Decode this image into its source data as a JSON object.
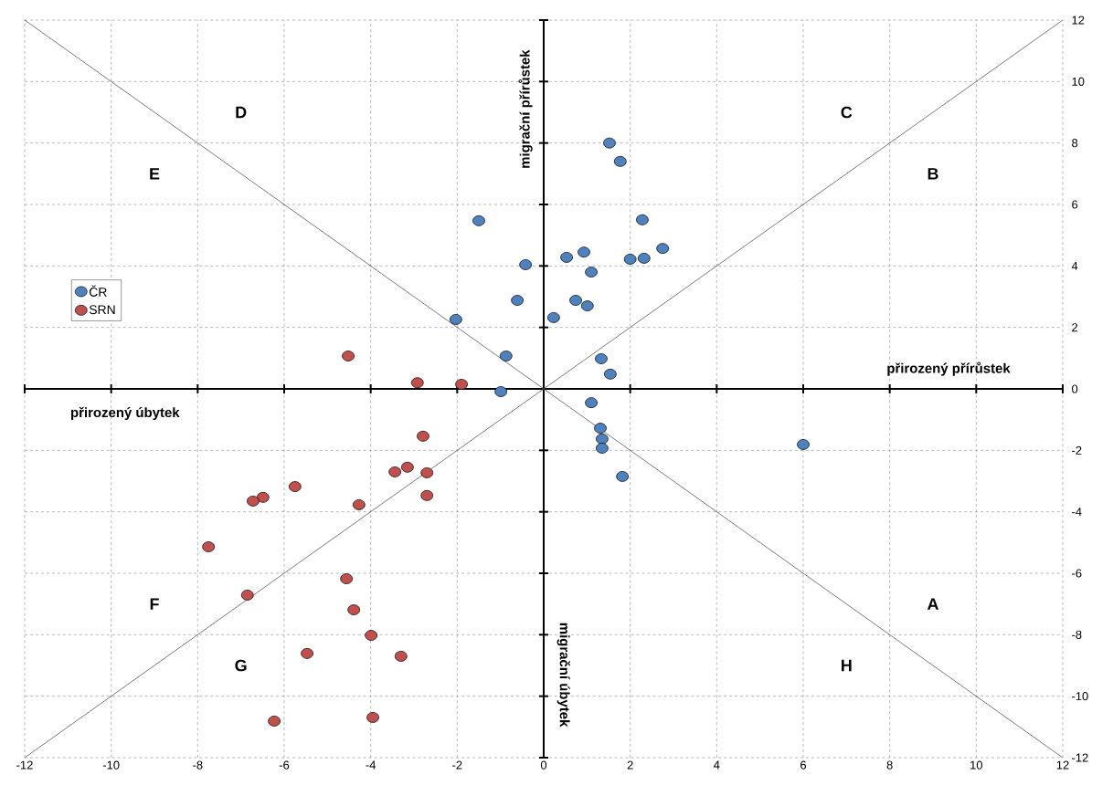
{
  "chart_data": {
    "type": "scatter",
    "marker": "circle",
    "grid": true,
    "legend": "left",
    "tick_labels": "xy",
    "xlim": [
      -12,
      12
    ],
    "ylim": [
      -12,
      12
    ],
    "xticks": [
      -12,
      -10,
      -8,
      -6,
      -4,
      -2,
      0,
      2,
      4,
      6,
      8,
      10,
      12
    ],
    "yticks": [
      -12,
      -10,
      -8,
      -6,
      -4,
      -2,
      0,
      2,
      4,
      6,
      8,
      10,
      12
    ],
    "series": [
      {
        "name": "ČR",
        "color": "#4f81bd",
        "x": [
          1.52,
          1.77,
          -1.5,
          2.28,
          2.75,
          0.53,
          0.93,
          2.0,
          2.32,
          -0.42,
          1.1,
          -0.61,
          0.74,
          1.01,
          0.23,
          -2.03,
          -0.87,
          1.33,
          1.54,
          -0.99,
          1.1,
          1.31,
          1.35,
          1.35,
          1.82,
          6.0
        ],
        "values": [
          8.0,
          7.4,
          5.47,
          5.5,
          4.57,
          4.28,
          4.45,
          4.22,
          4.25,
          4.04,
          3.8,
          2.88,
          2.88,
          2.7,
          2.32,
          2.26,
          1.07,
          0.98,
          0.48,
          -0.09,
          -0.45,
          -1.28,
          -1.63,
          -1.93,
          -2.85,
          -1.81
        ]
      },
      {
        "name": "SRN",
        "color": "#c0504d",
        "x": [
          -4.52,
          -2.92,
          -1.9,
          -2.79,
          -3.44,
          -3.15,
          -2.7,
          -2.7,
          -4.27,
          -5.75,
          -6.49,
          -6.72,
          -7.75,
          -4.56,
          -6.85,
          -4.39,
          -3.99,
          -5.47,
          -3.3,
          -6.23,
          -3.95
        ],
        "values": [
          1.07,
          0.2,
          0.15,
          -1.54,
          -2.7,
          -2.55,
          -2.73,
          -3.47,
          -3.77,
          -3.18,
          -3.53,
          -3.65,
          -5.14,
          -6.18,
          -6.71,
          -7.19,
          -8.02,
          -8.61,
          -8.7,
          -10.81,
          -10.69
        ]
      },
      {
        "type": "line",
        "marker": "none",
        "color": "#595959",
        "x": [
          -12,
          12
        ],
        "values": [
          -12,
          12
        ]
      },
      {
        "type": "line",
        "marker": "none",
        "color": "#595959",
        "x": [
          -12,
          12
        ],
        "values": [
          12,
          -12
        ]
      }
    ],
    "annotations": [
      "přirozený přírůstek",
      "přirozený úbytek",
      "migrační přírůstek",
      "migrační úbytek",
      "A",
      "B",
      "C",
      "D",
      "E",
      "F",
      "G",
      "H"
    ]
  }
}
